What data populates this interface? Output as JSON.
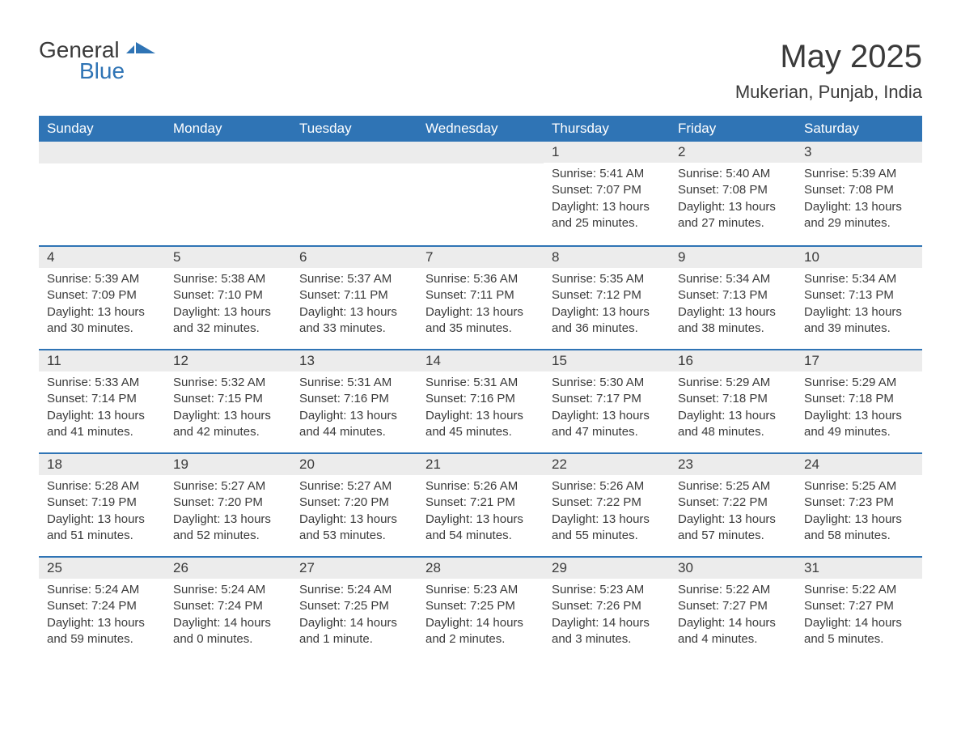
{
  "logo": {
    "text_general": "General",
    "text_blue": "Blue",
    "icon_color": "#2f74b5"
  },
  "title": {
    "month": "May 2025",
    "location": "Mukerian, Punjab, India"
  },
  "colors": {
    "header_bg": "#2f74b5",
    "header_text": "#ffffff",
    "bar_bg": "#ececec",
    "bar_border": "#2f74b5",
    "body_text": "#3a3a3a",
    "page_bg": "#ffffff"
  },
  "day_names": [
    "Sunday",
    "Monday",
    "Tuesday",
    "Wednesday",
    "Thursday",
    "Friday",
    "Saturday"
  ],
  "labels": {
    "sunrise": "Sunrise:",
    "sunset": "Sunset:",
    "daylight": "Daylight:"
  },
  "weeks": [
    [
      null,
      null,
      null,
      null,
      {
        "num": "1",
        "sunrise": "5:41 AM",
        "sunset": "7:07 PM",
        "daylight": "13 hours and 25 minutes."
      },
      {
        "num": "2",
        "sunrise": "5:40 AM",
        "sunset": "7:08 PM",
        "daylight": "13 hours and 27 minutes."
      },
      {
        "num": "3",
        "sunrise": "5:39 AM",
        "sunset": "7:08 PM",
        "daylight": "13 hours and 29 minutes."
      }
    ],
    [
      {
        "num": "4",
        "sunrise": "5:39 AM",
        "sunset": "7:09 PM",
        "daylight": "13 hours and 30 minutes."
      },
      {
        "num": "5",
        "sunrise": "5:38 AM",
        "sunset": "7:10 PM",
        "daylight": "13 hours and 32 minutes."
      },
      {
        "num": "6",
        "sunrise": "5:37 AM",
        "sunset": "7:11 PM",
        "daylight": "13 hours and 33 minutes."
      },
      {
        "num": "7",
        "sunrise": "5:36 AM",
        "sunset": "7:11 PM",
        "daylight": "13 hours and 35 minutes."
      },
      {
        "num": "8",
        "sunrise": "5:35 AM",
        "sunset": "7:12 PM",
        "daylight": "13 hours and 36 minutes."
      },
      {
        "num": "9",
        "sunrise": "5:34 AM",
        "sunset": "7:13 PM",
        "daylight": "13 hours and 38 minutes."
      },
      {
        "num": "10",
        "sunrise": "5:34 AM",
        "sunset": "7:13 PM",
        "daylight": "13 hours and 39 minutes."
      }
    ],
    [
      {
        "num": "11",
        "sunrise": "5:33 AM",
        "sunset": "7:14 PM",
        "daylight": "13 hours and 41 minutes."
      },
      {
        "num": "12",
        "sunrise": "5:32 AM",
        "sunset": "7:15 PM",
        "daylight": "13 hours and 42 minutes."
      },
      {
        "num": "13",
        "sunrise": "5:31 AM",
        "sunset": "7:16 PM",
        "daylight": "13 hours and 44 minutes."
      },
      {
        "num": "14",
        "sunrise": "5:31 AM",
        "sunset": "7:16 PM",
        "daylight": "13 hours and 45 minutes."
      },
      {
        "num": "15",
        "sunrise": "5:30 AM",
        "sunset": "7:17 PM",
        "daylight": "13 hours and 47 minutes."
      },
      {
        "num": "16",
        "sunrise": "5:29 AM",
        "sunset": "7:18 PM",
        "daylight": "13 hours and 48 minutes."
      },
      {
        "num": "17",
        "sunrise": "5:29 AM",
        "sunset": "7:18 PM",
        "daylight": "13 hours and 49 minutes."
      }
    ],
    [
      {
        "num": "18",
        "sunrise": "5:28 AM",
        "sunset": "7:19 PM",
        "daylight": "13 hours and 51 minutes."
      },
      {
        "num": "19",
        "sunrise": "5:27 AM",
        "sunset": "7:20 PM",
        "daylight": "13 hours and 52 minutes."
      },
      {
        "num": "20",
        "sunrise": "5:27 AM",
        "sunset": "7:20 PM",
        "daylight": "13 hours and 53 minutes."
      },
      {
        "num": "21",
        "sunrise": "5:26 AM",
        "sunset": "7:21 PM",
        "daylight": "13 hours and 54 minutes."
      },
      {
        "num": "22",
        "sunrise": "5:26 AM",
        "sunset": "7:22 PM",
        "daylight": "13 hours and 55 minutes."
      },
      {
        "num": "23",
        "sunrise": "5:25 AM",
        "sunset": "7:22 PM",
        "daylight": "13 hours and 57 minutes."
      },
      {
        "num": "24",
        "sunrise": "5:25 AM",
        "sunset": "7:23 PM",
        "daylight": "13 hours and 58 minutes."
      }
    ],
    [
      {
        "num": "25",
        "sunrise": "5:24 AM",
        "sunset": "7:24 PM",
        "daylight": "13 hours and 59 minutes."
      },
      {
        "num": "26",
        "sunrise": "5:24 AM",
        "sunset": "7:24 PM",
        "daylight": "14 hours and 0 minutes."
      },
      {
        "num": "27",
        "sunrise": "5:24 AM",
        "sunset": "7:25 PM",
        "daylight": "14 hours and 1 minute."
      },
      {
        "num": "28",
        "sunrise": "5:23 AM",
        "sunset": "7:25 PM",
        "daylight": "14 hours and 2 minutes."
      },
      {
        "num": "29",
        "sunrise": "5:23 AM",
        "sunset": "7:26 PM",
        "daylight": "14 hours and 3 minutes."
      },
      {
        "num": "30",
        "sunrise": "5:22 AM",
        "sunset": "7:27 PM",
        "daylight": "14 hours and 4 minutes."
      },
      {
        "num": "31",
        "sunrise": "5:22 AM",
        "sunset": "7:27 PM",
        "daylight": "14 hours and 5 minutes."
      }
    ]
  ]
}
